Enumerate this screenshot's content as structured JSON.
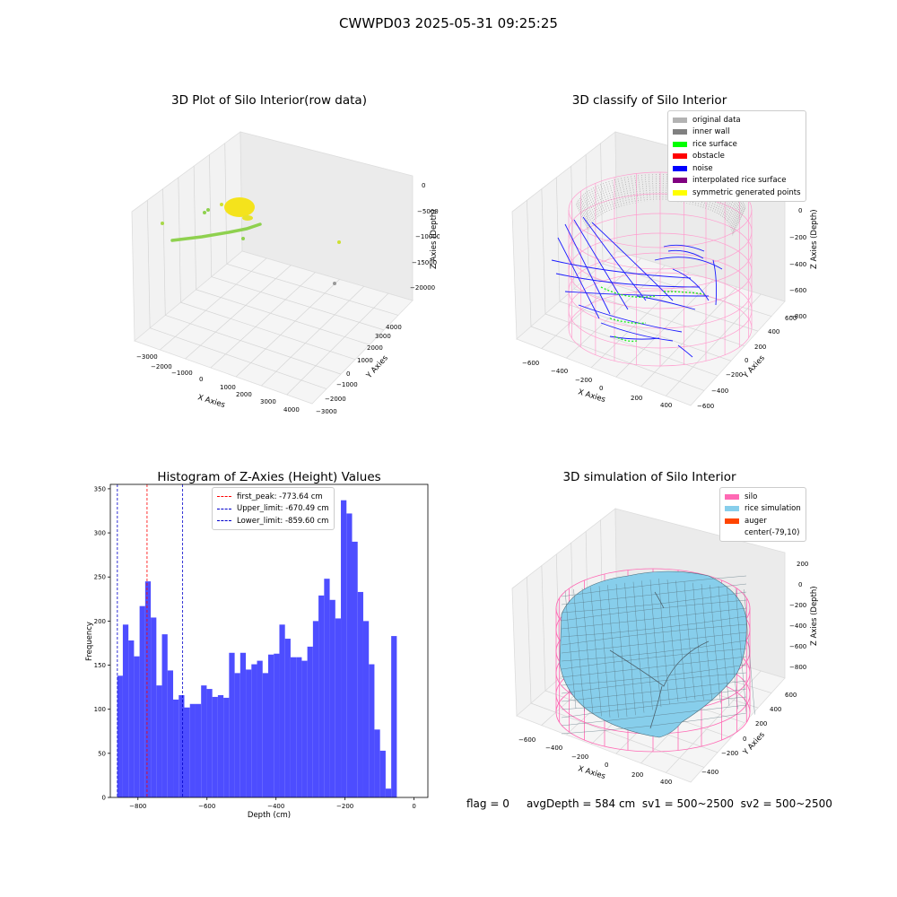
{
  "figure": {
    "title": "CWWPD03 2025-05-31 09:25:25"
  },
  "panels": {
    "raw": {
      "title": "3D Plot of Silo Interior(row data)",
      "xlabel": "X Axies",
      "ylabel": "Y Axies",
      "zlabel": "Z Axies (Depth)",
      "xticks": [
        "−3000",
        "−2000",
        "−1000",
        "0",
        "1000",
        "2000",
        "3000",
        "4000"
      ],
      "yticks": [
        "−3000",
        "−2000",
        "−1000",
        "0",
        "1000",
        "2000",
        "3000",
        "4000"
      ],
      "zticks": [
        "0",
        "−5000",
        "−10000",
        "−15000",
        "−20000"
      ]
    },
    "classify": {
      "title": "3D classify of Silo Interior",
      "xlabel": "X Axies",
      "ylabel": "Y Axies",
      "zlabel": "Z Axies (Depth)",
      "xticks": [
        "−600",
        "−400",
        "−200",
        "0",
        "200",
        "400"
      ],
      "yticks": [
        "−600",
        "−400",
        "−200",
        "0",
        "200",
        "400",
        "600"
      ],
      "zticks": [
        "0",
        "−200",
        "−400",
        "−600",
        "−800"
      ],
      "ztick_partial": "00",
      "legend": [
        {
          "label": "original data",
          "color": "#b3b3b3"
        },
        {
          "label": "inner wall",
          "color": "#808080"
        },
        {
          "label": "rice surface",
          "color": "#00ff00"
        },
        {
          "label": "obstacle",
          "color": "#ff0000"
        },
        {
          "label": "noise",
          "color": "#0000ff"
        },
        {
          "label": "interpolated rice surface",
          "color": "#800080"
        },
        {
          "label": "symmetric generated points",
          "color": "#ffff00"
        }
      ]
    },
    "simulation": {
      "title": "3D simulation of Silo Interior",
      "xlabel": "X Axies",
      "ylabel": "Y Axies",
      "zlabel": "Z Axies (Depth)",
      "xticks": [
        "−600",
        "−400",
        "−200",
        "0",
        "200",
        "400"
      ],
      "yticks": [
        "−400",
        "−200",
        "0",
        "200",
        "400",
        "600"
      ],
      "zticks": [
        "200",
        "0",
        "−200",
        "−400",
        "−600",
        "−800"
      ],
      "legend": [
        {
          "label": "silo",
          "color": "#ff69b4"
        },
        {
          "label": "rice simulation",
          "color": "#87ceeb"
        },
        {
          "label": "auger",
          "color": "#ff4500"
        },
        {
          "label": "center(-79,10)",
          "color": "#ffffff"
        }
      ]
    }
  },
  "footer": {
    "flag": "flag = 0",
    "stats": "avgDepth = 584 cm  sv1 = 500~2500  sv2 = 500~2500"
  },
  "chart_data": [
    {
      "type": "bar",
      "title": "Histogram of Z-Axies (Height) Values",
      "xlabel": "Depth (cm)",
      "ylabel": "Frequency",
      "xlim": [
        -880,
        40
      ],
      "ylim": [
        0,
        355
      ],
      "xticks": [
        -800,
        -600,
        -400,
        -200,
        0
      ],
      "yticks": [
        0,
        50,
        100,
        150,
        200,
        250,
        300,
        350
      ],
      "bin_start": -860,
      "bin_width": 16.2,
      "values": [
        138,
        196,
        178,
        160,
        217,
        245,
        204,
        127,
        185,
        144,
        111,
        116,
        102,
        106,
        106,
        127,
        123,
        114,
        116,
        113,
        164,
        141,
        164,
        145,
        151,
        155,
        141,
        162,
        163,
        196,
        180,
        159,
        159,
        155,
        171,
        200,
        229,
        248,
        224,
        203,
        337,
        322,
        290,
        233,
        200,
        151,
        77,
        53,
        10,
        183
      ],
      "color": "#4d4dff",
      "lines": [
        {
          "label": "first_peak: -773.64 cm",
          "x": -773.64,
          "color": "#ff0000"
        },
        {
          "label": "Upper_limit: -670.49 cm",
          "x": -670.49,
          "color": "#0000cc"
        },
        {
          "label": "Lower_limit: -859.60 cm",
          "x": -859.6,
          "color": "#0000cc"
        }
      ]
    }
  ]
}
